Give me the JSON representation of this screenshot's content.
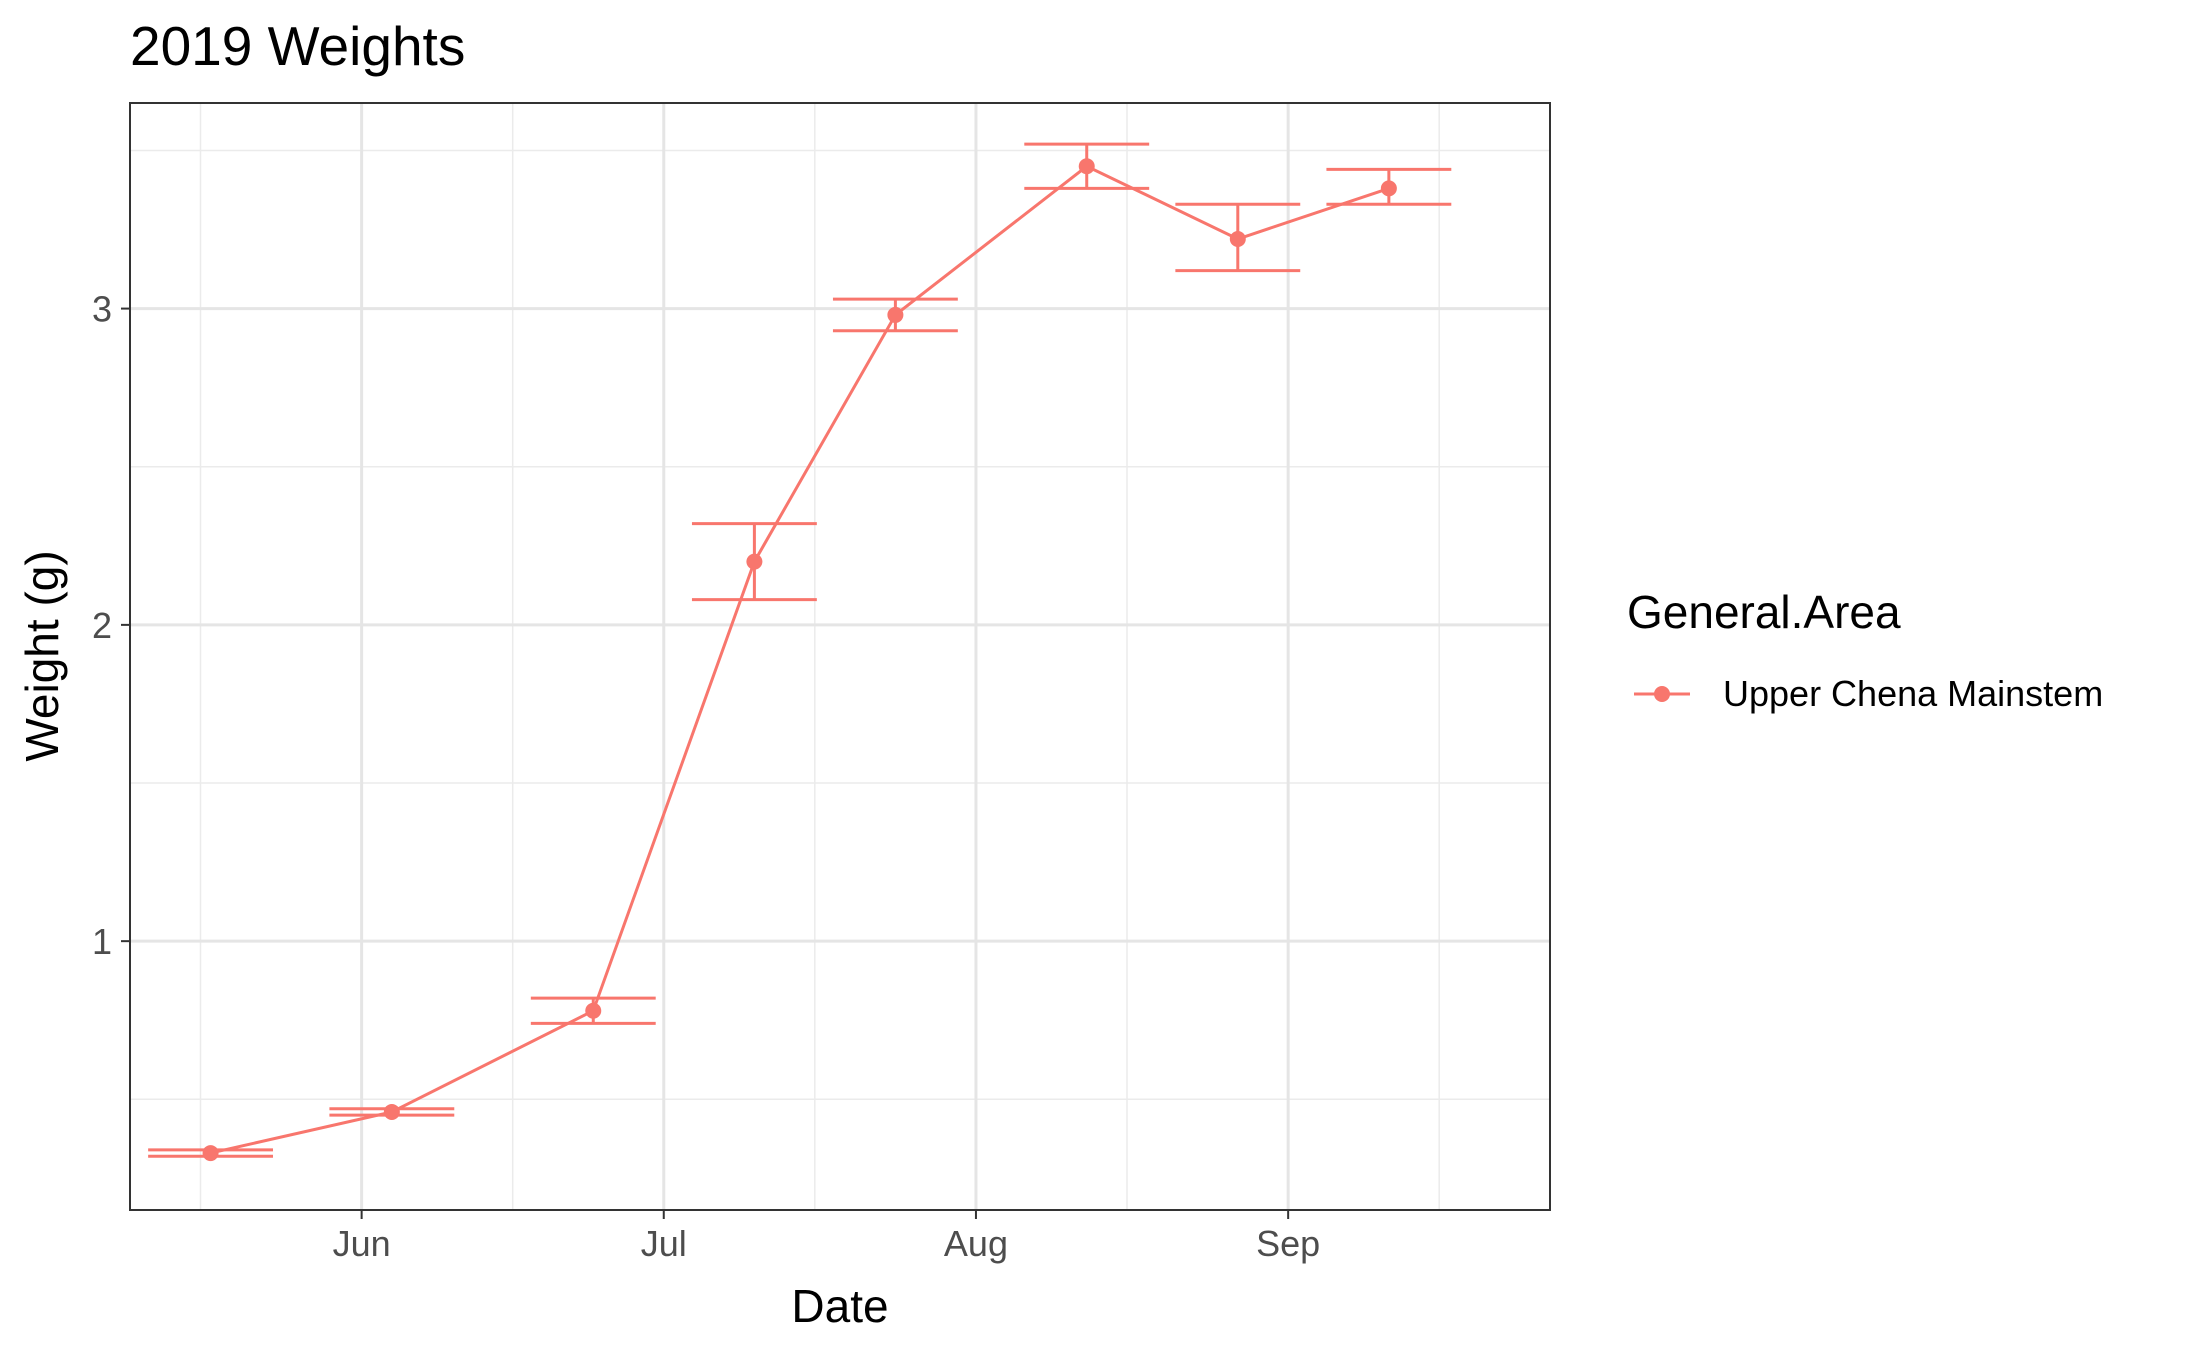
{
  "chart_data": {
    "type": "line",
    "title": "2019 Weights",
    "xlabel": "Date",
    "ylabel": "Weight (g)",
    "x_ticks": [
      "Jun",
      "Jul",
      "Aug",
      "Sep"
    ],
    "y_ticks": [
      "1",
      "2",
      "3"
    ],
    "xlim": [
      "2019-05-09",
      "2019-09-27"
    ],
    "ylim": [
      0.15,
      3.65
    ],
    "grid": true,
    "legend": {
      "title": "General.Area",
      "position": "right",
      "entries": [
        "Upper Chena Mainstem"
      ]
    },
    "series": [
      {
        "name": "Upper Chena Mainstem",
        "color": "#F8766D",
        "points": [
          {
            "x": "2019-05-17",
            "y": 0.33,
            "ymin": 0.32,
            "ymax": 0.34
          },
          {
            "x": "2019-06-04",
            "y": 0.46,
            "ymin": 0.45,
            "ymax": 0.47
          },
          {
            "x": "2019-06-24",
            "y": 0.78,
            "ymin": 0.74,
            "ymax": 0.82
          },
          {
            "x": "2019-07-10",
            "y": 2.2,
            "ymin": 2.08,
            "ymax": 2.32
          },
          {
            "x": "2019-07-24",
            "y": 2.98,
            "ymin": 2.93,
            "ymax": 3.03
          },
          {
            "x": "2019-08-12",
            "y": 3.45,
            "ymin": 3.38,
            "ymax": 3.52
          },
          {
            "x": "2019-08-27",
            "y": 3.22,
            "ymin": 3.12,
            "ymax": 3.33
          },
          {
            "x": "2019-09-11",
            "y": 3.38,
            "ymin": 3.33,
            "ymax": 3.44
          }
        ]
      }
    ]
  }
}
